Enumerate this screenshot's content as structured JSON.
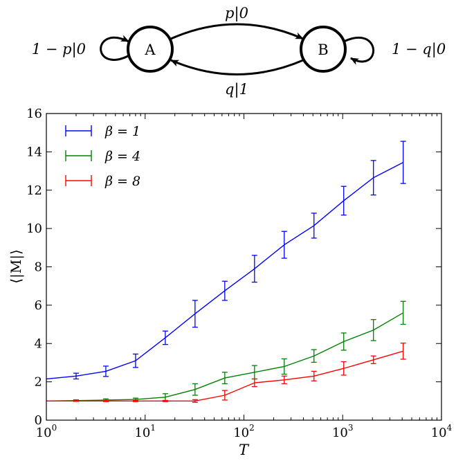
{
  "diagram": {
    "states": [
      {
        "id": "A",
        "label": "A"
      },
      {
        "id": "B",
        "label": "B"
      }
    ],
    "transitions": [
      {
        "from": "A",
        "to": "B",
        "label": "p|0"
      },
      {
        "from": "B",
        "to": "A",
        "label": "q|1"
      },
      {
        "from": "A",
        "to": "A",
        "label": "1 − p|0"
      },
      {
        "from": "B",
        "to": "B",
        "label": "1 − q|0"
      }
    ]
  },
  "chart_data": {
    "type": "line",
    "xlabel": "T",
    "ylabel": "⟨|M|⟩",
    "xscale": "log",
    "xlim": [
      1,
      10000
    ],
    "ylim": [
      0,
      16
    ],
    "xticks": [
      {
        "value": 1,
        "base": "10",
        "exp": "0"
      },
      {
        "value": 10,
        "base": "10",
        "exp": "1"
      },
      {
        "value": 100,
        "base": "10",
        "exp": "2"
      },
      {
        "value": 1000,
        "base": "10",
        "exp": "3"
      },
      {
        "value": 10000,
        "base": "10",
        "exp": "4"
      }
    ],
    "yticks": [
      "0",
      "2",
      "4",
      "6",
      "8",
      "10",
      "12",
      "14",
      "16"
    ],
    "legend_position": "top-left",
    "grid": false,
    "series": [
      {
        "name": "β = 1",
        "color": "#0000ff",
        "x": [
          1,
          2,
          4,
          8,
          16,
          32,
          64,
          128,
          256,
          512,
          1024,
          2048,
          4096
        ],
        "y": [
          2.15,
          2.3,
          2.55,
          3.1,
          4.3,
          5.55,
          6.75,
          7.9,
          9.15,
          10.15,
          11.45,
          12.65,
          13.45
        ],
        "err": [
          0.0,
          0.15,
          0.27,
          0.35,
          0.35,
          0.7,
          0.5,
          0.7,
          0.7,
          0.65,
          0.75,
          0.9,
          1.1
        ]
      },
      {
        "name": "β = 4",
        "color": "#008000",
        "x": [
          1,
          2,
          4,
          8,
          16,
          32,
          64,
          128,
          256,
          512,
          1024,
          2048,
          4096
        ],
        "y": [
          1.0,
          1.02,
          1.05,
          1.08,
          1.2,
          1.6,
          2.2,
          2.5,
          2.8,
          3.35,
          4.1,
          4.7,
          5.6
        ],
        "err": [
          0.0,
          0.04,
          0.06,
          0.07,
          0.18,
          0.3,
          0.3,
          0.35,
          0.4,
          0.33,
          0.45,
          0.55,
          0.6
        ]
      },
      {
        "name": "β = 8",
        "color": "#ff0000",
        "x": [
          1,
          2,
          4,
          8,
          16,
          32,
          64,
          128,
          256,
          512,
          1024,
          2048,
          4096
        ],
        "y": [
          1.0,
          1.0,
          1.0,
          1.0,
          1.0,
          1.0,
          1.3,
          1.95,
          2.1,
          2.3,
          2.7,
          3.15,
          3.6
        ],
        "err": [
          0.0,
          0.02,
          0.03,
          0.03,
          0.03,
          0.07,
          0.25,
          0.2,
          0.2,
          0.25,
          0.35,
          0.2,
          0.42
        ]
      }
    ]
  }
}
